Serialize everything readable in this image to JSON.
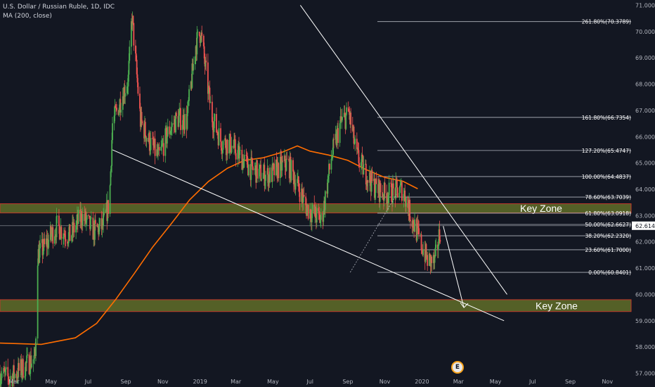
{
  "header": {
    "title": "U.S. Dollar / Russian Ruble, 1D, IDC",
    "indicator": "MA (200, close)"
  },
  "colors": {
    "background": "#131722",
    "up": "#26a69a",
    "up_bright": "#4caf50",
    "down": "#ef5350",
    "ma": "#ff6d00",
    "zone_fill": "#6b7a2a",
    "zone_border": "#c0392b",
    "fib_line": "#b2b5be",
    "price_tag": "#ffffff",
    "price_tag_text": "#131722"
  },
  "logo": {
    "glyph": "E"
  },
  "chart_data": {
    "type": "candlestick",
    "title": "U.S. Dollar / Russian Ruble, 1D, IDC",
    "y_axis": {
      "min": 56.8,
      "max": 71.2,
      "ticks": [
        "71.0000",
        "70.0000",
        "69.0000",
        "68.0000",
        "67.0000",
        "66.0000",
        "65.0000",
        "64.0000",
        "63.0000",
        "62.0000",
        "61.0000",
        "60.0000",
        "59.0000",
        "58.0000",
        "57.0000"
      ],
      "tick_values": [
        71,
        70,
        69,
        68,
        67,
        66,
        65,
        64,
        63,
        62,
        61,
        60,
        59,
        58,
        57
      ],
      "last_price": "62.6140",
      "last_price_value": 62.614
    },
    "x_axis": {
      "ticks": [
        "Mar",
        "May",
        "Jul",
        "Sep",
        "Nov",
        "2019",
        "Mar",
        "May",
        "Jul",
        "Sep",
        "Nov",
        "2020",
        "Mar",
        "May",
        "Jul",
        "Sep",
        "Nov"
      ],
      "tick_dates": [
        "2018-03-01",
        "2018-05-01",
        "2018-07-01",
        "2018-09-01",
        "2018-11-01",
        "2019-01-01",
        "2019-03-01",
        "2019-05-01",
        "2019-07-01",
        "2019-09-01",
        "2019-11-01",
        "2020-01-01",
        "2020-03-01",
        "2020-05-01",
        "2020-07-01",
        "2020-09-01",
        "2020-11-01"
      ],
      "range": [
        "2018-02-06",
        "2020-12-10"
      ]
    },
    "series": [
      {
        "name": "MA (200, close)",
        "type": "line",
        "points": [
          [
            "2018-02-06",
            58.15
          ],
          [
            "2018-04-15",
            58.1
          ],
          [
            "2018-06-10",
            58.35
          ],
          [
            "2018-07-15",
            58.9
          ],
          [
            "2018-08-15",
            59.8
          ],
          [
            "2018-09-15",
            60.8
          ],
          [
            "2018-10-15",
            61.8
          ],
          [
            "2018-11-15",
            62.7
          ],
          [
            "2018-12-15",
            63.6
          ],
          [
            "2019-01-15",
            64.3
          ],
          [
            "2019-02-15",
            64.8
          ],
          [
            "2019-03-15",
            65.1
          ],
          [
            "2019-04-15",
            65.2
          ],
          [
            "2019-05-15",
            65.4
          ],
          [
            "2019-06-10",
            65.65
          ],
          [
            "2019-07-01",
            65.45
          ],
          [
            "2019-08-01",
            65.3
          ],
          [
            "2019-09-01",
            65.1
          ],
          [
            "2019-10-01",
            64.75
          ],
          [
            "2019-11-01",
            64.45
          ],
          [
            "2019-12-01",
            64.3
          ],
          [
            "2019-12-25",
            64.02
          ]
        ]
      },
      {
        "name": "USDRUB",
        "type": "candlestick",
        "path": [
          [
            "2018-02-06",
            57.0
          ],
          [
            "2018-02-20",
            56.8
          ],
          [
            "2018-03-10",
            57.1
          ],
          [
            "2018-04-05",
            57.6
          ],
          [
            "2018-04-09",
            61.5
          ],
          [
            "2018-04-20",
            61.8
          ],
          [
            "2018-05-10",
            62.6
          ],
          [
            "2018-06-01",
            62.2
          ],
          [
            "2018-06-20",
            63.0
          ],
          [
            "2018-07-10",
            62.4
          ],
          [
            "2018-07-25",
            62.6
          ],
          [
            "2018-08-05",
            63.5
          ],
          [
            "2018-08-10",
            66.5
          ],
          [
            "2018-08-25",
            67.5
          ],
          [
            "2018-09-05",
            68.2
          ],
          [
            "2018-09-11",
            70.6
          ],
          [
            "2018-09-25",
            66.6
          ],
          [
            "2018-10-10",
            65.8
          ],
          [
            "2018-10-25",
            65.2
          ],
          [
            "2018-11-10",
            66.2
          ],
          [
            "2018-11-25",
            66.7
          ],
          [
            "2018-12-10",
            66.6
          ],
          [
            "2018-12-25",
            69.5
          ],
          [
            "2019-01-02",
            70.0
          ],
          [
            "2019-01-20",
            66.8
          ],
          [
            "2019-02-05",
            65.8
          ],
          [
            "2019-02-20",
            65.7
          ],
          [
            "2019-03-10",
            65.2
          ],
          [
            "2019-03-25",
            64.8
          ],
          [
            "2019-04-10",
            64.6
          ],
          [
            "2019-04-25",
            64.5
          ],
          [
            "2019-05-10",
            64.8
          ],
          [
            "2019-05-25",
            65.0
          ],
          [
            "2019-06-10",
            64.2
          ],
          [
            "2019-06-25",
            63.3
          ],
          [
            "2019-07-05",
            63.1
          ],
          [
            "2019-07-20",
            62.8
          ],
          [
            "2019-08-05",
            65.2
          ],
          [
            "2019-08-20",
            66.5
          ],
          [
            "2019-09-03",
            66.9
          ],
          [
            "2019-09-15",
            65.3
          ],
          [
            "2019-10-01",
            64.6
          ],
          [
            "2019-10-15",
            64.1
          ],
          [
            "2019-11-01",
            63.8
          ],
          [
            "2019-11-15",
            63.9
          ],
          [
            "2019-12-01",
            64.0
          ],
          [
            "2019-12-15",
            62.9
          ],
          [
            "2019-12-31",
            61.9
          ],
          [
            "2020-01-10",
            61.3
          ],
          [
            "2020-01-22",
            61.2
          ],
          [
            "2020-02-01",
            62.6
          ]
        ]
      }
    ],
    "fibonacci": [
      {
        "label": "261.80%(70.3789)",
        "value": 70.3789
      },
      {
        "label": "161.80%(66.7354)",
        "value": 66.7354
      },
      {
        "label": "127.20%(65.4747)",
        "value": 65.4747
      },
      {
        "label": "100.00%(64.4837)",
        "value": 64.4837
      },
      {
        "label": "78.60%(63.7039)",
        "value": 63.7039
      },
      {
        "label": "61.80%(63.0918)",
        "value": 63.0918
      },
      {
        "label": "50.00%(62.6627)",
        "value": 62.6627
      },
      {
        "label": "38.20%(62.2320)",
        "value": 62.232
      },
      {
        "label": "23.60%(61.7000)",
        "value": 61.7
      },
      {
        "label": "0.00%(60.8401)",
        "value": 60.8401
      }
    ],
    "zones": [
      {
        "label": "Key Zone",
        "from": 63.1,
        "to": 63.45
      },
      {
        "label": "Key Zone",
        "from": 59.35,
        "to": 59.8
      }
    ],
    "trendlines": [
      {
        "name": "upper",
        "from": [
          "2019-06-15",
          71.0
        ],
        "to": [
          "2020-05-20",
          60.0
        ]
      },
      {
        "name": "lower",
        "from": [
          "2018-08-10",
          65.5
        ],
        "to": [
          "2020-05-15",
          59.0
        ]
      }
    ],
    "projection_arrow": {
      "from": [
        "2020-02-05",
        62.6
      ],
      "to": [
        "2020-03-10",
        59.5
      ]
    }
  }
}
